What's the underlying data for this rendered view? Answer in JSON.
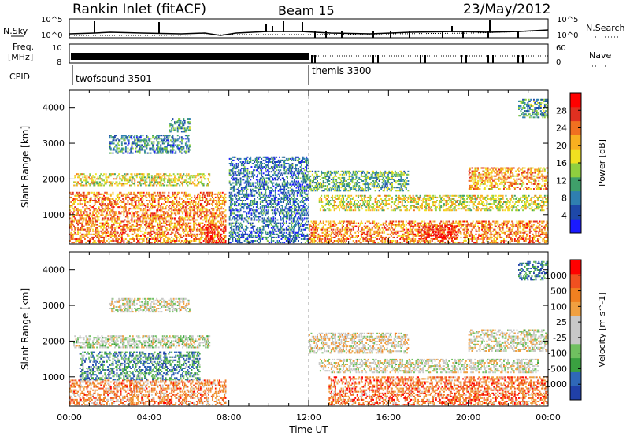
{
  "header": {
    "station": "Rankin Inlet (fitACF)",
    "beam": "Beam 15",
    "date": "23/May/2012"
  },
  "strips": {
    "nsky_label": "N.Sky",
    "nsky_ticks": [
      "10^5",
      "10^0"
    ],
    "nsearch_label": "N.Search",
    "nsearch_ticks": [
      "10^5",
      "10^0"
    ],
    "freq_label": "Freq.",
    "freq_unit": "[MHz]",
    "freq_ticks": [
      "10",
      "8"
    ],
    "nave_label": "Nave",
    "nave_ticks": [
      "60",
      "0"
    ],
    "cpid_label": "CPID",
    "cpid_modes": [
      {
        "name": "twofsound 3501",
        "start_hour": 0
      },
      {
        "name": "themis 3300",
        "start_hour": 12
      }
    ]
  },
  "chart_data": [
    {
      "type": "heatmap",
      "title": "",
      "xlabel": "Time UT",
      "ylabel": "Slant Range [km]",
      "xlim": [
        0,
        24
      ],
      "ylim": [
        180,
        4500
      ],
      "x_ticks": [
        "00:00",
        "04:00",
        "08:00",
        "12:00",
        "16:00",
        "20:00",
        "00:00"
      ],
      "y_ticks": [
        "1000",
        "2000",
        "3000",
        "4000"
      ],
      "colorbar": {
        "label": "Power [dB]",
        "ticks": [
          "4",
          "8",
          "12",
          "16",
          "20",
          "24",
          "28"
        ],
        "colors": [
          "#1a1aff",
          "#1e48a8",
          "#2f7fb0",
          "#3fa06a",
          "#8fcf3f",
          "#f0e020",
          "#f8b020",
          "#f07020",
          "#e03020",
          "#ff0000"
        ]
      },
      "regions": [
        {
          "t0": 0.0,
          "t1": 7.8,
          "r0": 200,
          "r1": 1600,
          "level": 0.75
        },
        {
          "t0": 6.8,
          "t1": 7.8,
          "r0": 200,
          "r1": 700,
          "level": 0.95
        },
        {
          "t0": 0.2,
          "t1": 7.0,
          "r0": 1800,
          "r1": 2150,
          "level": 0.55
        },
        {
          "t0": 2.0,
          "t1": 6.0,
          "r0": 2700,
          "r1": 3200,
          "level": 0.25
        },
        {
          "t0": 5.0,
          "t1": 6.0,
          "r0": 3300,
          "r1": 3700,
          "level": 0.3
        },
        {
          "t0": 8.0,
          "t1": 12.0,
          "r0": 200,
          "r1": 2600,
          "level": 0.2
        },
        {
          "t0": 12.0,
          "t1": 24.0,
          "r0": 200,
          "r1": 800,
          "level": 0.75
        },
        {
          "t0": 17.5,
          "t1": 19.5,
          "r0": 300,
          "r1": 700,
          "level": 0.95
        },
        {
          "t0": 12.5,
          "t1": 24.0,
          "r0": 1100,
          "r1": 1550,
          "level": 0.55
        },
        {
          "t0": 12.0,
          "t1": 17.0,
          "r0": 1650,
          "r1": 2200,
          "level": 0.35
        },
        {
          "t0": 20.0,
          "t1": 24.0,
          "r0": 1700,
          "r1": 2300,
          "level": 0.7
        },
        {
          "t0": 22.5,
          "t1": 24.0,
          "r0": 3700,
          "r1": 4200,
          "level": 0.3
        }
      ]
    },
    {
      "type": "heatmap",
      "title": "",
      "xlabel": "Time UT",
      "ylabel": "Slant Range [km]",
      "xlim": [
        0,
        24
      ],
      "ylim": [
        180,
        4500
      ],
      "x_ticks": [
        "00:00",
        "04:00",
        "08:00",
        "12:00",
        "16:00",
        "20:00",
        "00:00"
      ],
      "y_ticks": [
        "1000",
        "2000",
        "3000",
        "4000"
      ],
      "colorbar": {
        "label": "Velocity [m s^-1]",
        "ticks": [
          "1000",
          "500",
          "100",
          "25",
          "-25",
          "-100",
          "-500",
          "-1000"
        ],
        "colors": [
          "#2040a8",
          "#2f68b8",
          "#3aa040",
          "#70c060",
          "#c8c8c8",
          "#c8c8c8",
          "#f0a040",
          "#f08020",
          "#f05020",
          "#ff0000"
        ]
      },
      "regions": [
        {
          "t0": 0.0,
          "t1": 7.8,
          "r0": 200,
          "r1": 900,
          "level": 0.75
        },
        {
          "t0": 0.5,
          "t1": 6.5,
          "r0": 900,
          "r1": 1700,
          "level": 0.2
        },
        {
          "t0": 0.2,
          "t1": 7.0,
          "r0": 1800,
          "r1": 2150,
          "level": 0.45
        },
        {
          "t0": 2.0,
          "t1": 6.0,
          "r0": 2800,
          "r1": 3200,
          "level": 0.5
        },
        {
          "t0": 12.5,
          "t1": 23.5,
          "r0": 1100,
          "r1": 1500,
          "level": 0.5
        },
        {
          "t0": 12.0,
          "t1": 17.0,
          "r0": 1650,
          "r1": 2200,
          "level": 0.55
        },
        {
          "t0": 13.0,
          "t1": 24.0,
          "r0": 200,
          "r1": 1000,
          "level": 0.8
        },
        {
          "t0": 20.0,
          "t1": 24.0,
          "r0": 1700,
          "r1": 2300,
          "level": 0.5
        },
        {
          "t0": 22.5,
          "t1": 24.0,
          "r0": 3700,
          "r1": 4200,
          "level": 0.15
        }
      ]
    }
  ]
}
